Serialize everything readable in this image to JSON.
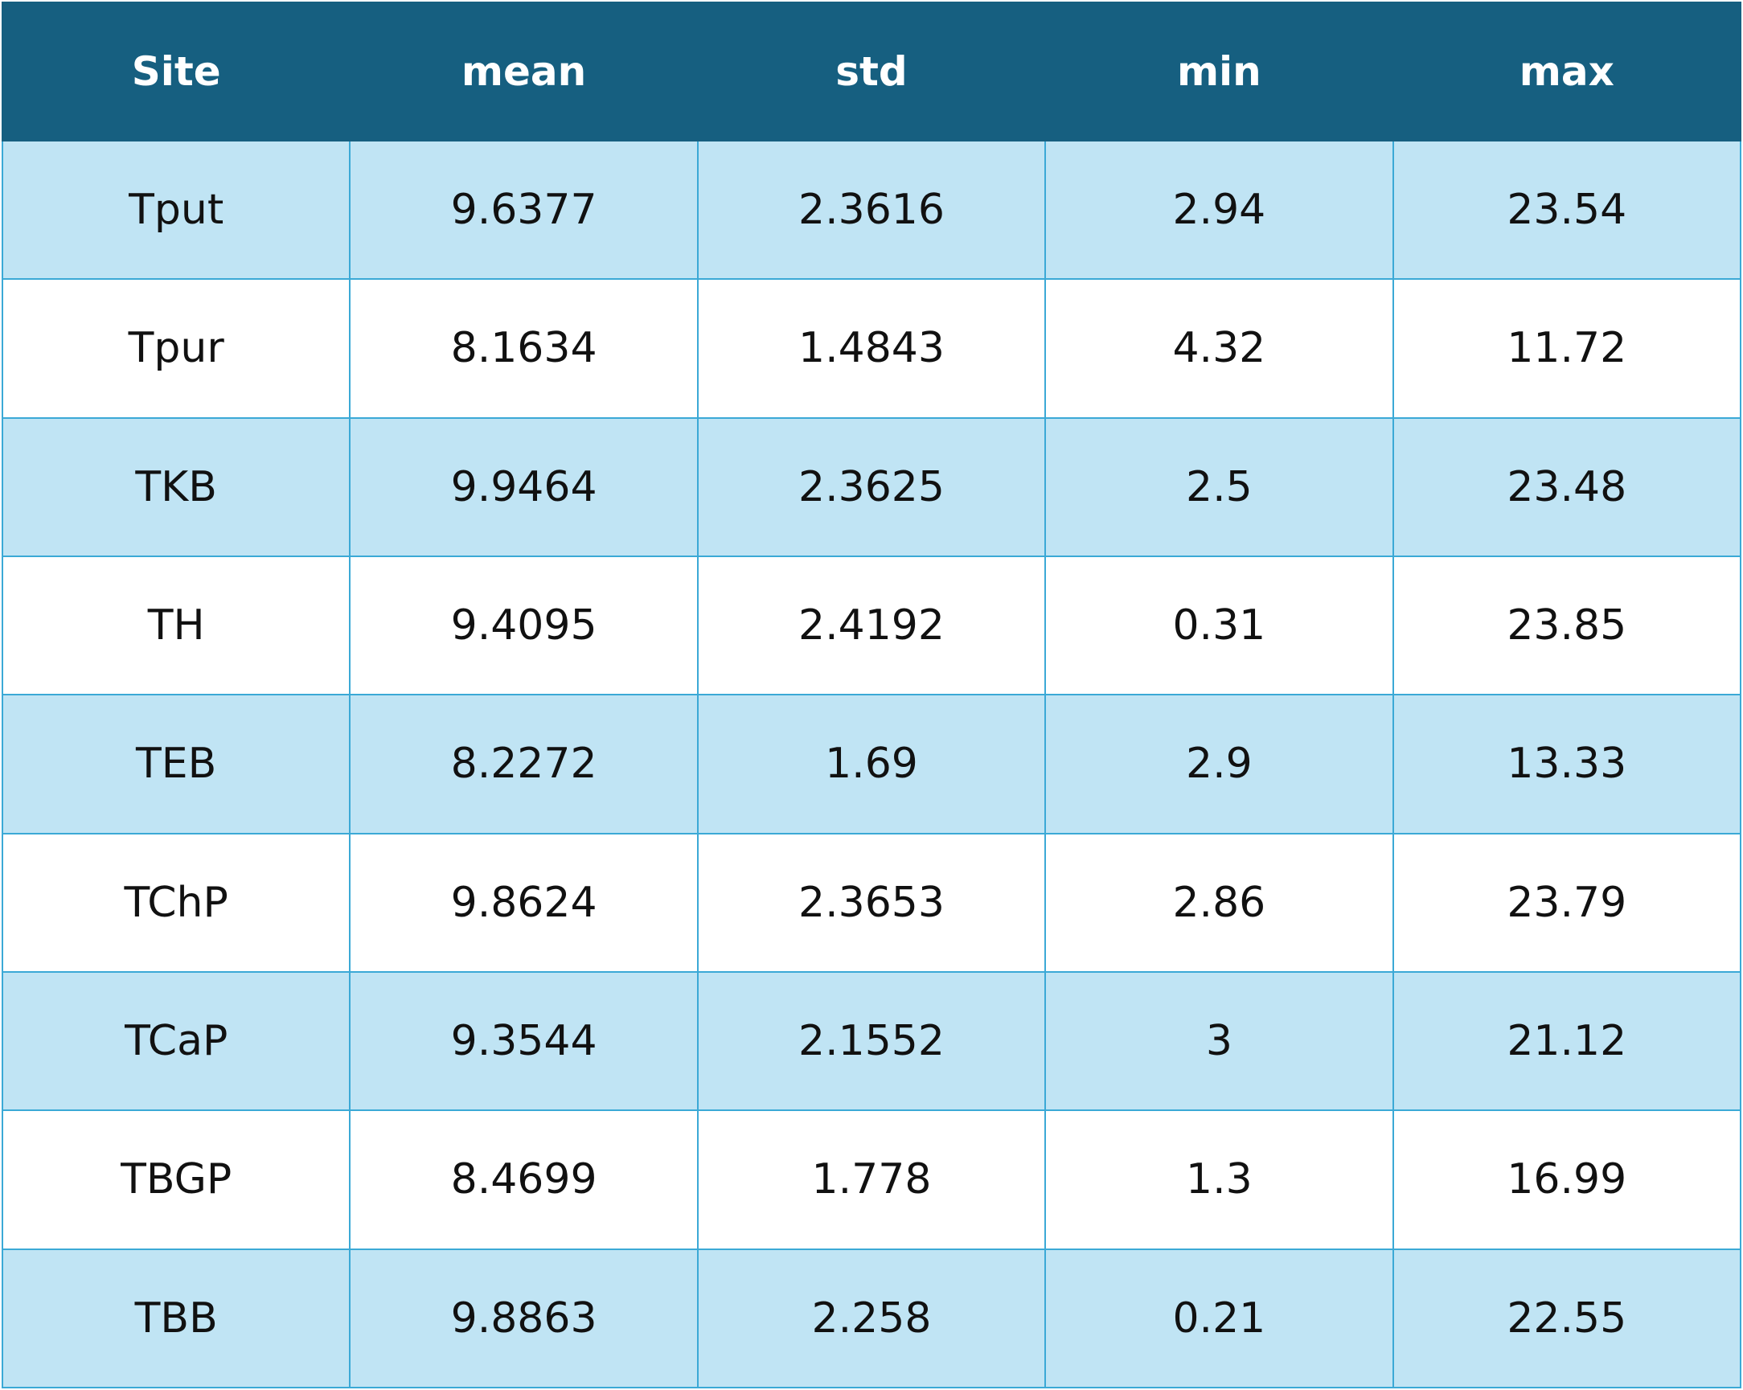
{
  "chart_data": {
    "type": "table",
    "columns": [
      "Site",
      "mean",
      "std",
      "min",
      "max"
    ],
    "rows": [
      [
        "Tput",
        "9.6377",
        "2.3616",
        "2.94",
        "23.54"
      ],
      [
        "Tpur",
        "8.1634",
        "1.4843",
        "4.32",
        "11.72"
      ],
      [
        "TKB",
        "9.9464",
        "2.3625",
        "2.5",
        "23.48"
      ],
      [
        "TH",
        "9.4095",
        "2.4192",
        "0.31",
        "23.85"
      ],
      [
        "TEB",
        "8.2272",
        "1.69",
        "2.9",
        "13.33"
      ],
      [
        "TChP",
        "9.8624",
        "2.3653",
        "2.86",
        "23.79"
      ],
      [
        "TCaP",
        "9.3544",
        "2.1552",
        "3",
        "21.12"
      ],
      [
        "TBGP",
        "8.4699",
        "1.778",
        "1.3",
        "16.99"
      ],
      [
        "TBB",
        "9.8863",
        "2.258",
        "0.21",
        "22.55"
      ]
    ]
  },
  "colors": {
    "header_bg": "#165f80",
    "header_text": "#ffffff",
    "band_row_bg": "#c0e4f4",
    "plain_row_bg": "#ffffff",
    "grid_line": "#3ba9d6"
  }
}
